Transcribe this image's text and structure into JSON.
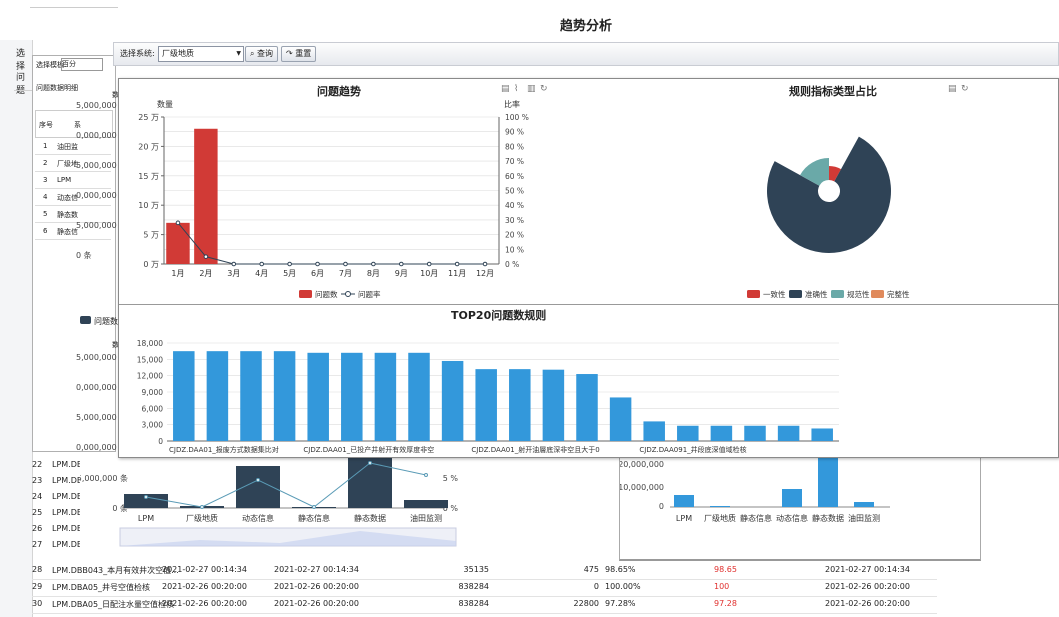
{
  "page_title": "趋势分析",
  "toolbar": {
    "system_label": "选择系统:",
    "system_value": "厂级地质",
    "query_label": "查询",
    "reset_label": "重置"
  },
  "bg_left": {
    "select_label": "选择",
    "issue_tab": "问题",
    "select_template_label": "选择模板:",
    "template_value": "百分",
    "detail_header": "问题数据明细",
    "col_index": "序号",
    "col_sys": "系"
  },
  "bg_list": [
    {
      "n": "1",
      "t": "油田监"
    },
    {
      "n": "2",
      "t": "厂级地"
    },
    {
      "n": "3",
      "t": "LPM"
    },
    {
      "n": "4",
      "t": "动态信"
    },
    {
      "n": "5",
      "t": "静态数"
    },
    {
      "n": "6",
      "t": "静态信"
    }
  ],
  "bg_yticks": [
    "5,000,000 条",
    "0,000,000 条",
    "5,000,000 条",
    "0,000,000 条",
    "5,000,000 条",
    "0 条"
  ],
  "bg_yticks2": [
    "5,000,000 条",
    "0,000,000 条",
    "5,000,000 条",
    "0,000,000 条"
  ],
  "bg_legend": "问题数",
  "bg_y_label": "数",
  "row_numbers": [
    "22",
    "23",
    "24",
    "25",
    "26",
    "27"
  ],
  "row_prefix": "LPM.DB",
  "bottom_chart_left": {
    "categories": [
      "LPM",
      "厂级地质",
      "动态信息",
      "静态信息",
      "静态数据",
      "油田监测"
    ],
    "yticks": [
      "5,000,000 条",
      "0 条"
    ],
    "y2ticks": [
      "5 %",
      "0 %"
    ]
  },
  "bottom_chart_right": {
    "categories": [
      "LPM",
      "厂级地质",
      "静态信息",
      "动态信息",
      "静态数据",
      "油田监测"
    ],
    "yticks": [
      "20,000,000",
      "10,000,000",
      "0"
    ]
  },
  "table_rows": [
    {
      "n": "28",
      "name": "LPM.DBB043_本月有效井次空值...",
      "t1": "2021-02-27 00:14:34",
      "t2": "2021-02-27 00:14:34",
      "a": "35135",
      "b": "475",
      "pct": "98.65%",
      "red": "98.65",
      "t3": "2021-02-27 00:14:34"
    },
    {
      "n": "29",
      "name": "LPM.DBA05_井号空值检核",
      "t1": "2021-02-26 00:20:00",
      "t2": "2021-02-26 00:20:00",
      "a": "838284",
      "b": "0",
      "pct": "100.00%",
      "red": "100",
      "t3": "2021-02-26 00:20:00"
    },
    {
      "n": "30",
      "name": "LPM.DBA05_日配注水量空值检核",
      "t1": "2021-02-26 00:20:00",
      "t2": "2021-02-26 00:20:00",
      "a": "838284",
      "b": "22800",
      "pct": "97.28%",
      "red": "97.28",
      "t3": "2021-02-26 00:20:00"
    }
  ],
  "trend_panel": {
    "title": "问题趋势",
    "ylabel_left": "数量",
    "ylabel_right": "比率",
    "legend_count": "问题数",
    "legend_rate": "问题率"
  },
  "ratio_panel": {
    "title": "规则指标类型占比"
  },
  "top20_panel": {
    "title": "TOP20问题数规则"
  },
  "colors": {
    "red": "#d13a36",
    "navy": "#2f4356",
    "teal": "#6aa9a8",
    "orange": "#e08a5c",
    "blue": "#3398db",
    "line": "#2f4356"
  },
  "chart_data": [
    {
      "type": "bar",
      "title": "问题趋势",
      "categories": [
        "1月",
        "2月",
        "3月",
        "4月",
        "5月",
        "6月",
        "7月",
        "8月",
        "9月",
        "10月",
        "11月",
        "12月"
      ],
      "ylim": [
        0,
        250000
      ],
      "yticks": [
        "0 万",
        "5 万",
        "10 万",
        "15 万",
        "20 万",
        "25 万"
      ],
      "y2lim": [
        0,
        100
      ],
      "y2ticks": [
        "0 %",
        "10 %",
        "20 %",
        "30 %",
        "40 %",
        "50 %",
        "60 %",
        "70 %",
        "80 %",
        "90 %",
        "100 %"
      ],
      "series": [
        {
          "name": "问题数",
          "type": "bar",
          "values": [
            70000,
            230000,
            0,
            0,
            0,
            0,
            0,
            0,
            0,
            0,
            0,
            0
          ]
        },
        {
          "name": "问题率",
          "type": "line",
          "values": [
            28,
            5,
            0,
            0,
            0,
            0,
            0,
            0,
            0,
            0,
            0,
            0
          ]
        }
      ]
    },
    {
      "type": "pie",
      "title": "规则指标类型占比",
      "legend": [
        "一致性",
        "准确性",
        "规范性",
        "完整性"
      ],
      "slices": [
        {
          "name": "一致性",
          "value": 8
        },
        {
          "name": "准确性",
          "value": 75
        },
        {
          "name": "规范性",
          "value": 17
        },
        {
          "name": "完整性",
          "value": 0
        }
      ]
    },
    {
      "type": "bar",
      "title": "TOP20问题数规则",
      "ylim": [
        0,
        18000
      ],
      "yticks": [
        "0",
        "3,000",
        "6,000",
        "9,000",
        "12,000",
        "15,000",
        "18,000"
      ],
      "categories": [
        "CJDZ.DAA01_报废方式数据集比对",
        "",
        "",
        "",
        "CJDZ.DAA01_已投产井射开有效厚度非空",
        "",
        "",
        "",
        "",
        "CJDZ.DAA01_射开油層底深非空且大于0",
        "",
        "",
        "",
        "",
        "CJDZ.DAA091_井段底深值域检核",
        "",
        "",
        "",
        "",
        ""
      ],
      "values": [
        16500,
        16500,
        16500,
        16500,
        16200,
        16200,
        16200,
        16200,
        14700,
        13200,
        13200,
        13100,
        12300,
        8000,
        3600,
        2800,
        2800,
        2800,
        2800,
        2300
      ]
    }
  ]
}
